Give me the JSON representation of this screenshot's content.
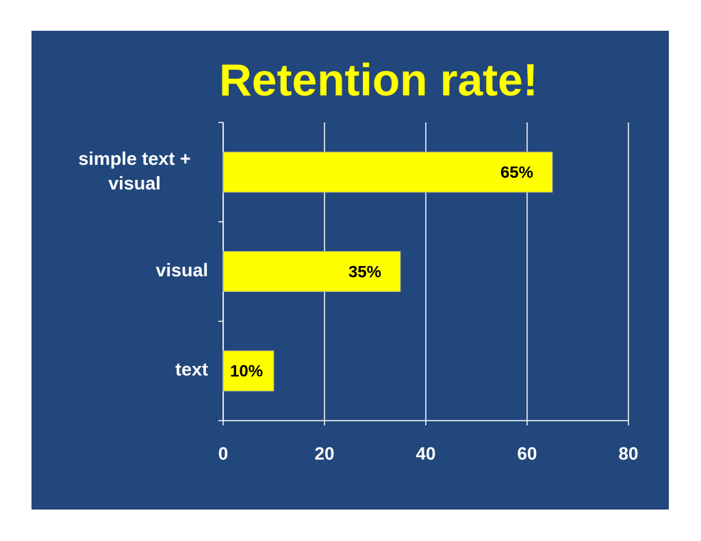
{
  "chart_data": {
    "type": "bar",
    "orientation": "horizontal",
    "title": "Retention rate!",
    "categories": [
      "simple text + visual",
      "visual",
      "text"
    ],
    "values": [
      65,
      35,
      10
    ],
    "value_labels": [
      "65%",
      "35%",
      "10%"
    ],
    "color": "#ffff00",
    "background": "#22477c",
    "xlim": [
      0,
      80
    ],
    "xticks": [
      0,
      20,
      40,
      60,
      80
    ],
    "grid": true
  }
}
